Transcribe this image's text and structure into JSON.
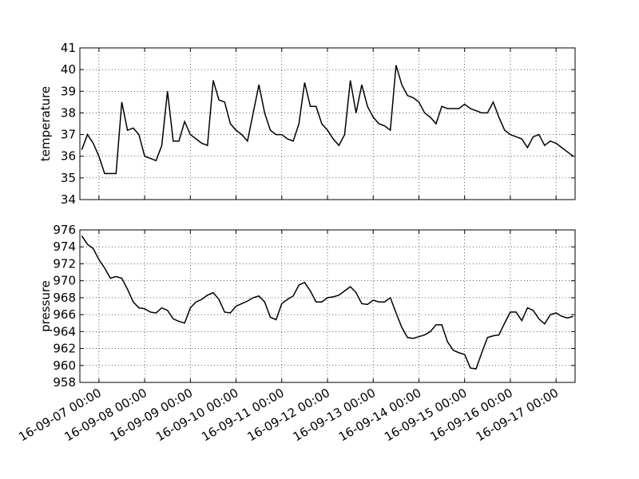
{
  "chart_data": [
    {
      "type": "line",
      "ylabel": "temperature",
      "grid": true,
      "xlim": [
        "16-09-06 14:00",
        "16-09-17 10:00"
      ],
      "xticks": [
        "16-09-07 00:00",
        "16-09-08 00:00",
        "16-09-09 00:00",
        "16-09-10 00:00",
        "16-09-11 00:00",
        "16-09-12 00:00",
        "16-09-13 00:00",
        "16-09-14 00:00",
        "16-09-15 00:00",
        "16-09-16 00:00",
        "16-09-17 00:00"
      ],
      "ylim": [
        34,
        41
      ],
      "yticks": [
        34,
        35,
        36,
        37,
        38,
        39,
        40,
        41
      ],
      "x": [
        "16-09-06 15:00",
        "16-09-06 18:00",
        "16-09-06 21:00",
        "16-09-07 00:00",
        "16-09-07 03:00",
        "16-09-07 06:00",
        "16-09-07 09:00",
        "16-09-07 12:00",
        "16-09-07 15:00",
        "16-09-07 18:00",
        "16-09-07 21:00",
        "16-09-08 00:00",
        "16-09-08 03:00",
        "16-09-08 06:00",
        "16-09-08 09:00",
        "16-09-08 12:00",
        "16-09-08 15:00",
        "16-09-08 18:00",
        "16-09-08 21:00",
        "16-09-09 00:00",
        "16-09-09 03:00",
        "16-09-09 06:00",
        "16-09-09 09:00",
        "16-09-09 12:00",
        "16-09-09 15:00",
        "16-09-09 18:00",
        "16-09-09 21:00",
        "16-09-10 00:00",
        "16-09-10 03:00",
        "16-09-10 06:00",
        "16-09-10 09:00",
        "16-09-10 12:00",
        "16-09-10 15:00",
        "16-09-10 18:00",
        "16-09-10 21:00",
        "16-09-11 00:00",
        "16-09-11 03:00",
        "16-09-11 06:00",
        "16-09-11 09:00",
        "16-09-11 12:00",
        "16-09-11 15:00",
        "16-09-11 18:00",
        "16-09-11 21:00",
        "16-09-12 00:00",
        "16-09-12 03:00",
        "16-09-12 06:00",
        "16-09-12 09:00",
        "16-09-12 12:00",
        "16-09-12 15:00",
        "16-09-12 18:00",
        "16-09-12 21:00",
        "16-09-13 00:00",
        "16-09-13 03:00",
        "16-09-13 06:00",
        "16-09-13 09:00",
        "16-09-13 12:00",
        "16-09-13 15:00",
        "16-09-13 18:00",
        "16-09-13 21:00",
        "16-09-14 00:00",
        "16-09-14 03:00",
        "16-09-14 06:00",
        "16-09-14 09:00",
        "16-09-14 12:00",
        "16-09-14 15:00",
        "16-09-14 18:00",
        "16-09-14 21:00",
        "16-09-15 00:00",
        "16-09-15 03:00",
        "16-09-15 06:00",
        "16-09-15 09:00",
        "16-09-15 12:00",
        "16-09-15 15:00",
        "16-09-15 18:00",
        "16-09-15 21:00",
        "16-09-16 00:00",
        "16-09-16 03:00",
        "16-09-16 06:00",
        "16-09-16 09:00",
        "16-09-16 12:00",
        "16-09-16 15:00",
        "16-09-16 18:00",
        "16-09-16 21:00",
        "16-09-17 00:00",
        "16-09-17 03:00",
        "16-09-17 06:00",
        "16-09-17 09:00"
      ],
      "series": [
        {
          "name": "temperature",
          "color": "#000000",
          "values": [
            36.3,
            37.0,
            36.6,
            36.0,
            35.2,
            35.2,
            35.2,
            38.5,
            37.2,
            37.3,
            37.0,
            36.0,
            35.9,
            35.8,
            36.5,
            39.0,
            36.7,
            36.7,
            37.6,
            37.0,
            36.8,
            36.6,
            36.5,
            39.5,
            38.6,
            38.5,
            37.5,
            37.2,
            37.0,
            36.7,
            38.0,
            39.3,
            38.0,
            37.2,
            37.0,
            37.0,
            36.8,
            36.7,
            37.5,
            39.4,
            38.3,
            38.3,
            37.5,
            37.2,
            36.8,
            36.5,
            37.0,
            39.5,
            38.0,
            39.3,
            38.3,
            37.8,
            37.5,
            37.4,
            37.2,
            40.2,
            39.3,
            38.8,
            38.7,
            38.5,
            38.0,
            37.8,
            37.5,
            38.3,
            38.2,
            38.2,
            38.2,
            38.4,
            38.2,
            38.1,
            38.0,
            38.0,
            38.5,
            37.8,
            37.2,
            37.0,
            36.9,
            36.8,
            36.4,
            36.9,
            37.0,
            36.5,
            36.7,
            36.6,
            36.4,
            36.2,
            36.0
          ]
        }
      ]
    },
    {
      "type": "line",
      "ylabel": "pressure",
      "grid": true,
      "xlim": [
        "16-09-06 14:00",
        "16-09-17 10:00"
      ],
      "xticks": [
        "16-09-07 00:00",
        "16-09-08 00:00",
        "16-09-09 00:00",
        "16-09-10 00:00",
        "16-09-11 00:00",
        "16-09-12 00:00",
        "16-09-13 00:00",
        "16-09-14 00:00",
        "16-09-15 00:00",
        "16-09-16 00:00",
        "16-09-17 00:00"
      ],
      "ylim": [
        958,
        976
      ],
      "yticks": [
        958,
        960,
        962,
        964,
        966,
        968,
        970,
        972,
        974,
        976
      ],
      "x": [
        "16-09-06 15:00",
        "16-09-06 18:00",
        "16-09-06 21:00",
        "16-09-07 00:00",
        "16-09-07 03:00",
        "16-09-07 06:00",
        "16-09-07 09:00",
        "16-09-07 12:00",
        "16-09-07 15:00",
        "16-09-07 18:00",
        "16-09-07 21:00",
        "16-09-08 00:00",
        "16-09-08 03:00",
        "16-09-08 06:00",
        "16-09-08 09:00",
        "16-09-08 12:00",
        "16-09-08 15:00",
        "16-09-08 18:00",
        "16-09-08 21:00",
        "16-09-09 00:00",
        "16-09-09 03:00",
        "16-09-09 06:00",
        "16-09-09 09:00",
        "16-09-09 12:00",
        "16-09-09 15:00",
        "16-09-09 18:00",
        "16-09-09 21:00",
        "16-09-10 00:00",
        "16-09-10 03:00",
        "16-09-10 06:00",
        "16-09-10 09:00",
        "16-09-10 12:00",
        "16-09-10 15:00",
        "16-09-10 18:00",
        "16-09-10 21:00",
        "16-09-11 00:00",
        "16-09-11 03:00",
        "16-09-11 06:00",
        "16-09-11 09:00",
        "16-09-11 12:00",
        "16-09-11 15:00",
        "16-09-11 18:00",
        "16-09-11 21:00",
        "16-09-12 00:00",
        "16-09-12 03:00",
        "16-09-12 06:00",
        "16-09-12 09:00",
        "16-09-12 12:00",
        "16-09-12 15:00",
        "16-09-12 18:00",
        "16-09-12 21:00",
        "16-09-13 00:00",
        "16-09-13 03:00",
        "16-09-13 06:00",
        "16-09-13 09:00",
        "16-09-13 12:00",
        "16-09-13 15:00",
        "16-09-13 18:00",
        "16-09-13 21:00",
        "16-09-14 00:00",
        "16-09-14 03:00",
        "16-09-14 06:00",
        "16-09-14 09:00",
        "16-09-14 12:00",
        "16-09-14 15:00",
        "16-09-14 18:00",
        "16-09-14 21:00",
        "16-09-15 00:00",
        "16-09-15 03:00",
        "16-09-15 06:00",
        "16-09-15 09:00",
        "16-09-15 12:00",
        "16-09-15 15:00",
        "16-09-15 18:00",
        "16-09-15 21:00",
        "16-09-16 00:00",
        "16-09-16 03:00",
        "16-09-16 06:00",
        "16-09-16 09:00",
        "16-09-16 12:00",
        "16-09-16 15:00",
        "16-09-16 18:00",
        "16-09-16 21:00",
        "16-09-17 00:00",
        "16-09-17 03:00",
        "16-09-17 06:00",
        "16-09-17 09:00"
      ],
      "series": [
        {
          "name": "pressure",
          "color": "#000000",
          "values": [
            975.3,
            974.3,
            973.8,
            972.5,
            971.5,
            970.3,
            970.5,
            970.3,
            969.0,
            967.5,
            966.8,
            966.7,
            966.3,
            966.2,
            966.8,
            966.5,
            965.5,
            965.2,
            965.0,
            966.8,
            967.5,
            967.8,
            968.3,
            968.6,
            967.8,
            966.3,
            966.2,
            967.0,
            967.3,
            967.6,
            968.0,
            968.2,
            967.5,
            965.7,
            965.4,
            967.3,
            967.8,
            968.2,
            969.5,
            969.8,
            968.8,
            967.5,
            967.5,
            968.0,
            968.1,
            968.3,
            968.8,
            969.3,
            968.6,
            967.3,
            967.2,
            967.7,
            967.5,
            967.5,
            968.0,
            966.2,
            964.5,
            963.3,
            963.2,
            963.4,
            963.6,
            964.0,
            964.8,
            964.8,
            962.8,
            961.8,
            961.5,
            961.3,
            959.7,
            959.6,
            961.5,
            963.3,
            963.5,
            963.6,
            965.0,
            966.3,
            966.3,
            965.3,
            966.8,
            966.5,
            965.5,
            964.9,
            966.0,
            966.2,
            965.8,
            965.6,
            965.8
          ]
        }
      ]
    }
  ]
}
